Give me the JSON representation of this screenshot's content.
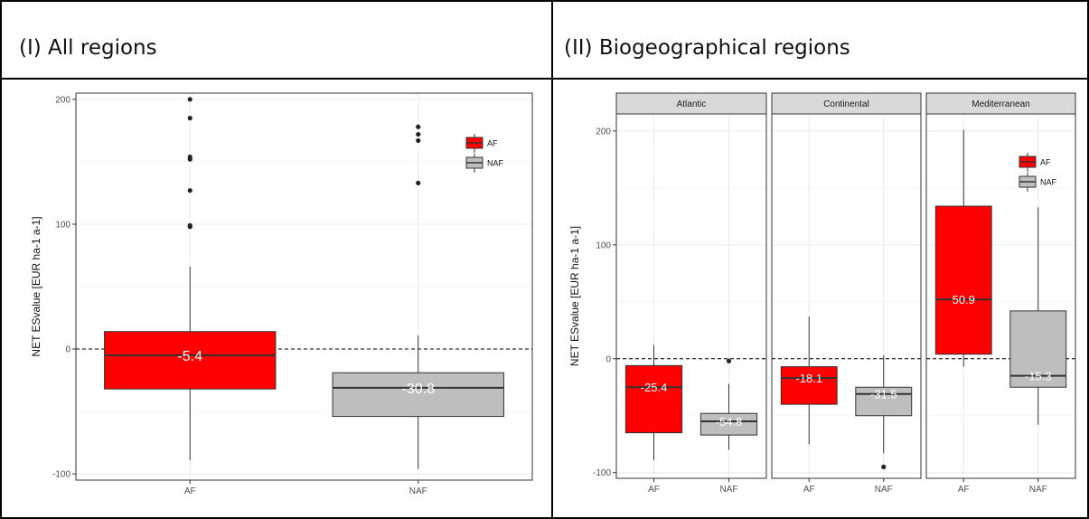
{
  "table": {
    "header_left": "(I) All regions",
    "header_right": "(II) Biogeographical regions"
  },
  "colors": {
    "AF": "#ff0000",
    "NAF": "#bebebe"
  },
  "chart_data": [
    {
      "type": "box",
      "title": "",
      "ylabel": "NET ESvalue [EUR ha-1 a-1]",
      "ylim": [
        -105,
        205
      ],
      "yticks": [
        -100,
        0,
        100,
        200
      ],
      "categories": [
        "AF",
        "NAF"
      ],
      "reference_line": 0,
      "legend": {
        "entries": [
          "AF",
          "NAF"
        ],
        "position": "top-right"
      },
      "panels": [
        {
          "strip": "",
          "boxes": [
            {
              "category": "AF",
              "label": "-5.4",
              "q1": -32,
              "median": -5,
              "q3": 14,
              "whisker_low": -89,
              "whisker_high": 66,
              "outliers": [
                98,
                99,
                127,
                152,
                154,
                185,
                200
              ]
            },
            {
              "category": "NAF",
              "label": "-30.8",
              "q1": -54,
              "median": -31,
              "q3": -19,
              "whisker_low": -96,
              "whisker_high": 11,
              "outliers": [
                133,
                167,
                172,
                178
              ]
            }
          ]
        }
      ]
    },
    {
      "type": "box",
      "title": "",
      "ylabel": "NET ESvalue [EUR ha-1 a-1]",
      "ylim": [
        -105,
        215
      ],
      "yticks": [
        -100,
        0,
        100,
        200
      ],
      "categories": [
        "AF",
        "NAF"
      ],
      "reference_line": 0,
      "legend": {
        "entries": [
          "AF",
          "NAF"
        ],
        "position": "top-right"
      },
      "panels": [
        {
          "strip": "Atlantic",
          "boxes": [
            {
              "category": "AF",
              "label": "-25.4",
              "q1": -65,
              "median": -25,
              "q3": -6,
              "whisker_low": -89,
              "whisker_high": 12,
              "outliers": []
            },
            {
              "category": "NAF",
              "label": "-54.8",
              "q1": -67,
              "median": -55,
              "q3": -48,
              "whisker_low": -80,
              "whisker_high": -22,
              "outliers": [
                -2
              ]
            }
          ]
        },
        {
          "strip": "Continental",
          "boxes": [
            {
              "category": "AF",
              "label": "-18.1",
              "q1": -40,
              "median": -17,
              "q3": -7,
              "whisker_low": -75,
              "whisker_high": 37,
              "outliers": []
            },
            {
              "category": "NAF",
              "label": "-31.5",
              "q1": -50,
              "median": -31,
              "q3": -25,
              "whisker_low": -83,
              "whisker_high": 3,
              "outliers": [
                -95
              ]
            }
          ]
        },
        {
          "strip": "Mediterranean",
          "boxes": [
            {
              "category": "AF",
              "label": "50.9",
              "q1": 4,
              "median": 52,
              "q3": 134,
              "whisker_low": -7,
              "whisker_high": 201,
              "outliers": []
            },
            {
              "category": "NAF",
              "label": "-15.3",
              "q1": -25,
              "median": -15,
              "q3": 42,
              "whisker_low": -58,
              "whisker_high": 133,
              "outliers": []
            }
          ]
        }
      ]
    }
  ]
}
